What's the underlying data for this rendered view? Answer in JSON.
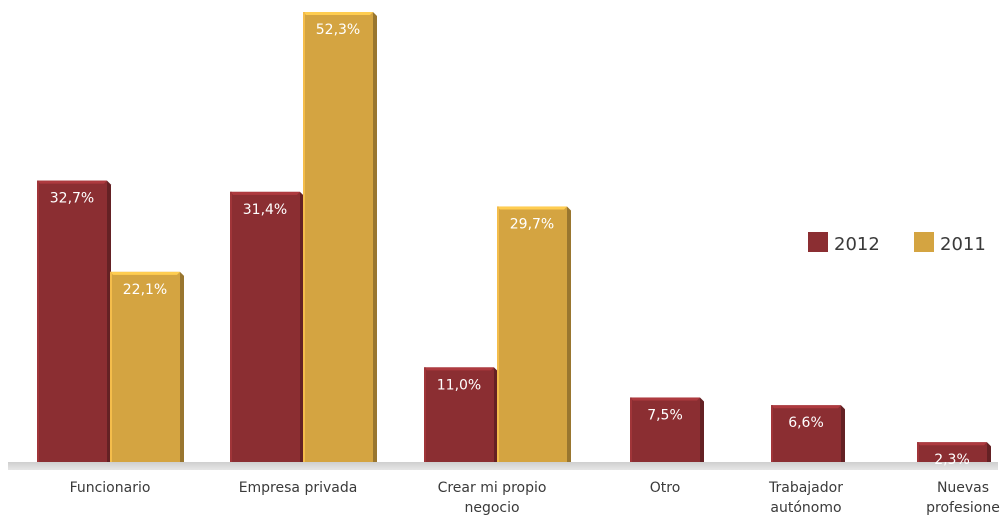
{
  "chart_data": {
    "type": "bar",
    "categories": [
      [
        "Funcionario"
      ],
      [
        "Empresa privada"
      ],
      [
        "Crear mi propio",
        "negocio"
      ],
      [
        "Otro"
      ],
      [
        "Trabajador",
        "autónomo"
      ],
      [
        "Nuevas",
        "profesione"
      ]
    ],
    "series": [
      {
        "name": "2012",
        "color": "#8b2e32",
        "values": [
          32.7,
          31.4,
          11.0,
          7.5,
          6.6,
          2.3
        ],
        "labels": [
          "32,7%",
          "31,4%",
          "11,0%",
          "7,5%",
          "6,6%",
          "2,3%"
        ]
      },
      {
        "name": "2011",
        "color": "#d4a441",
        "values": [
          22.1,
          52.3,
          29.7,
          null,
          null,
          null
        ],
        "labels": [
          "22,1%",
          "52,3%",
          "29,7%",
          null,
          null,
          null
        ]
      }
    ],
    "title": "",
    "xlabel": "",
    "ylabel": "",
    "ylim": [
      0,
      52.3
    ],
    "grid": false,
    "legend": "right"
  }
}
